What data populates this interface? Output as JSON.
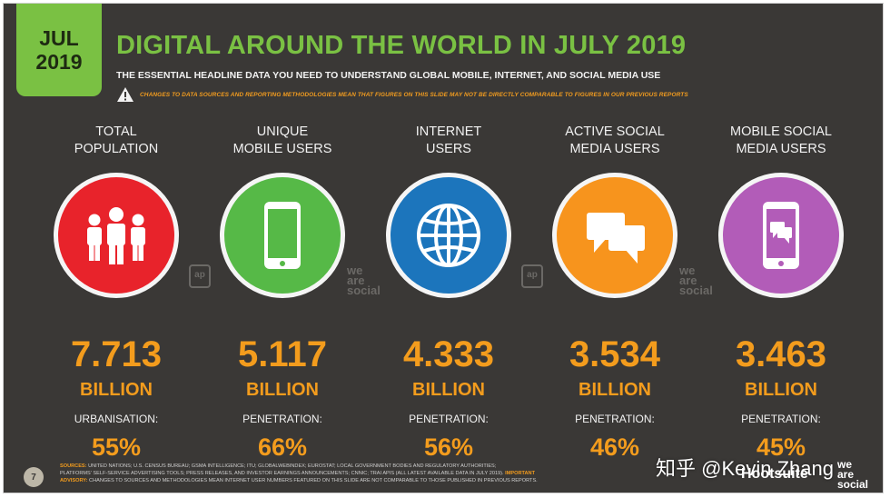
{
  "badge": {
    "month": "JUL",
    "year": "2019"
  },
  "title": "DIGITAL AROUND THE WORLD IN JULY 2019",
  "subtitle": "THE ESSENTIAL HEADLINE DATA YOU NEED TO UNDERSTAND GLOBAL MOBILE, INTERNET, AND SOCIAL MEDIA USE",
  "warning": "CHANGES TO DATA SOURCES AND REPORTING METHODOLOGIES MEAN THAT FIGURES ON THIS SLIDE MAY NOT BE DIRECTLY COMPARABLE TO FIGURES IN OUR PREVIOUS REPORTS",
  "colors": {
    "background": "#3a3836",
    "accent_green": "#7ac143",
    "value_orange": "#f39c1d",
    "population_red": "#e8232b",
    "mobile_green": "#56b947",
    "internet_blue": "#1c75bc",
    "social_orange": "#f7941d",
    "mobile_social_purple": "#b25cb8"
  },
  "stats": [
    {
      "label_line1": "TOTAL",
      "label_line2": "POPULATION",
      "icon": "people-icon",
      "value": "7.713",
      "unit": "BILLION",
      "sublabel": "URBANISATION:",
      "pct": "55%"
    },
    {
      "label_line1": "UNIQUE",
      "label_line2": "MOBILE USERS",
      "icon": "mobile-phone-icon",
      "value": "5.117",
      "unit": "BILLION",
      "sublabel": "PENETRATION:",
      "pct": "66%"
    },
    {
      "label_line1": "INTERNET",
      "label_line2": "USERS",
      "icon": "globe-icon",
      "value": "4.333",
      "unit": "BILLION",
      "sublabel": "PENETRATION:",
      "pct": "56%"
    },
    {
      "label_line1": "ACTIVE SOCIAL",
      "label_line2": "MEDIA USERS",
      "icon": "chat-bubbles-icon",
      "value": "3.534",
      "unit": "BILLION",
      "sublabel": "PENETRATION:",
      "pct": "46%"
    },
    {
      "label_line1": "MOBILE SOCIAL",
      "label_line2": "MEDIA USERS",
      "icon": "mobile-chat-icon",
      "value": "3.463",
      "unit": "BILLION",
      "sublabel": "PENETRATION:",
      "pct": "45%"
    }
  ],
  "watermarks": {
    "we": "we",
    "are": "are",
    "social": "social",
    "badge": "ap"
  },
  "page_number": "7",
  "footer": {
    "sources_label": "SOURCES:",
    "sources_text": "UNITED NATIONS; U.S. CENSUS BUREAU; GSMA INTELLIGENCE; ITU; GLOBALWEBINDEX; EUROSTAT; LOCAL GOVERNMENT BODIES AND REGULATORY AUTHORITIES;",
    "line2": "PLATFORMS' SELF-SERVICE ADVERTISING TOOLS; PRESS RELEASES, AND INVESTOR EARNINGS ANNOUNCEMENTS; CNNIC; TRAI APIS (ALL LATEST AVAILABLE DATA IN JULY 2019).",
    "important_label": "IMPORTANT",
    "advisory_label": "ADVISORY:",
    "advisory_text": "CHANGES TO SOURCES AND METHODOLOGIES MEAN INTERNET USER NUMBERS FEATURED ON THIS SLIDE ARE NOT COMPARABLE TO THOSE PUBLISHED IN PREVIOUS REPORTS."
  },
  "overlay": "知乎 @Kevin Zhang",
  "brands": {
    "hootsuite": "Hootsuite",
    "we": "we",
    "are": "are",
    "social": "social"
  }
}
